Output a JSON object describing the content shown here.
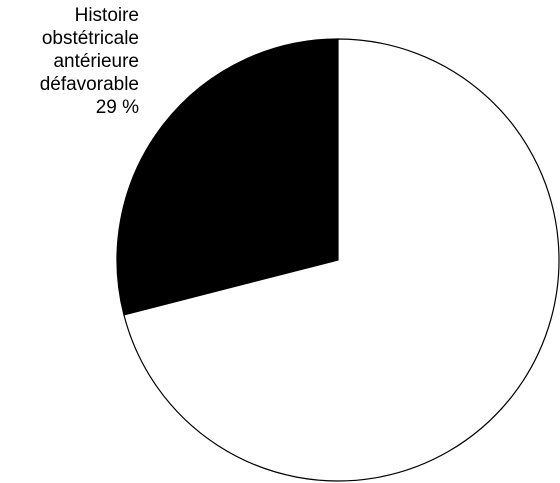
{
  "chart_data": {
    "type": "pie",
    "slices": [
      {
        "label_lines": [
          "Histoire",
          "obstétricale",
          "antérieure",
          "défavorable"
        ],
        "value_label": "29 %",
        "value": 29,
        "fill": "#000000"
      },
      {
        "label_lines": [],
        "value_label": "",
        "value": 71,
        "fill": "#ffffff"
      }
    ],
    "start_angle_deg": 0,
    "direction": "counterclockwise",
    "outline_color": "#000000",
    "legend": "none"
  }
}
